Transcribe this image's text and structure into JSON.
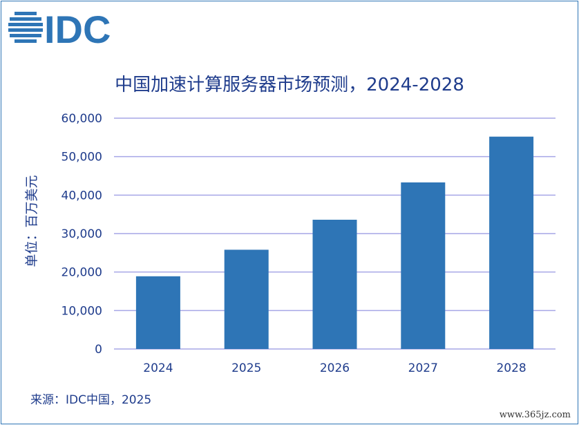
{
  "logo": {
    "text": "IDC",
    "color": "#2e75b6"
  },
  "source_note": "来源：IDC中国，2025",
  "watermark": "www.365jz.com",
  "chart_data": {
    "type": "bar",
    "title": "中国加速计算服务器市场预测，2024-2028",
    "xlabel": "",
    "ylabel": "单位：百万美元",
    "categories": [
      "2024",
      "2025",
      "2026",
      "2027",
      "2028"
    ],
    "values": [
      18900,
      25800,
      33600,
      43300,
      55200
    ],
    "ylim": [
      0,
      60000
    ],
    "yticks": [
      0,
      10000,
      20000,
      30000,
      40000,
      50000,
      60000
    ],
    "ytick_labels": [
      "0",
      "10,000",
      "20,000",
      "30,000",
      "40,000",
      "50,000",
      "60,000"
    ],
    "grid": true,
    "legend": "none",
    "bar_color": "#2e75b6",
    "grid_color": "#a6a6e6"
  }
}
